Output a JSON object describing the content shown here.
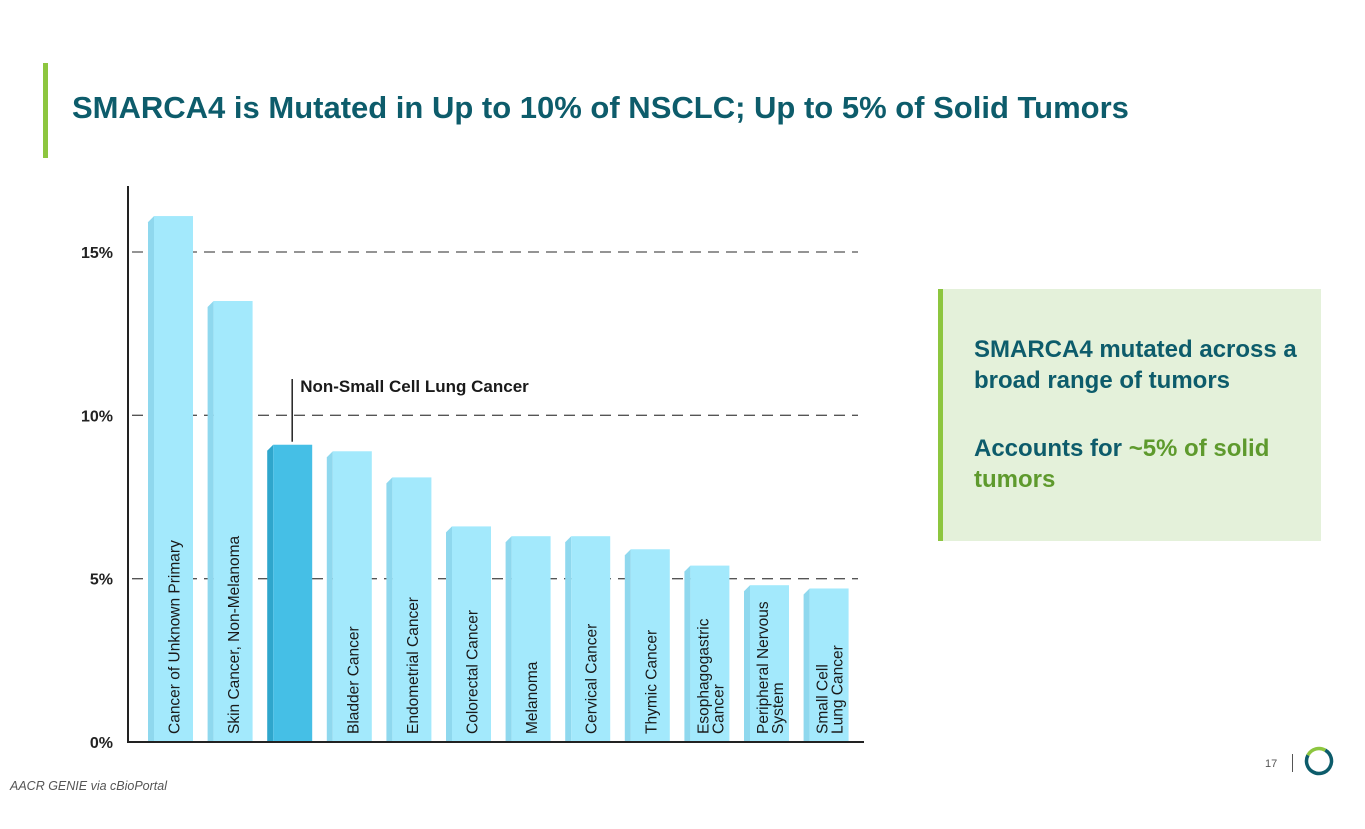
{
  "slide": {
    "title": "SMARCA4 is Mutated in Up to 10% of NSCLC; Up to 5% of Solid Tumors",
    "source": "AACR GENIE via cBioPortal",
    "page_number": "17",
    "logo_icon": "ring-logo-icon"
  },
  "callout": {
    "line1": "SMARCA4 mutated across a broad range of tumors",
    "line2_prefix": "Accounts for ",
    "line2_highlight": "~5% of solid tumors"
  },
  "colors": {
    "title": "#0d5c6b",
    "accent_green": "#8dc63f",
    "highlight_green": "#5e9a2d",
    "callout_bg": "#e4f1da",
    "bar_light": "#a3e9fc",
    "bar_light_side": "#8fd8ee",
    "bar_highlight": "#45bfe6",
    "bar_highlight_side": "#2fa6cc"
  },
  "chart_data": {
    "type": "bar",
    "title": "",
    "xlabel": "",
    "ylabel": "",
    "ylim": [
      0,
      17
    ],
    "yticks": [
      0,
      5,
      10,
      15
    ],
    "ytick_labels": [
      "0%",
      "5%",
      "10%",
      "15%"
    ],
    "grid": "dashed at 5%, 10%, 15%",
    "categories": [
      "Cancer of Unknown Primary",
      "Skin Cancer, Non-Melanoma",
      "Non-Small Cell Lung Cancer",
      "Bladder Cancer",
      "Endometrial Cancer",
      "Colorectal Cancer",
      "Melanoma",
      "Cervical Cancer",
      "Thymic Cancer",
      "Esophagogastric Cancer",
      "Peripheral Nervous System",
      "Small Cell Lung Cancer"
    ],
    "bar_labels": [
      [
        "Cancer of Unknown Primary"
      ],
      [
        "Skin Cancer, Non-Melanoma"
      ],
      [],
      [
        "Bladder Cancer"
      ],
      [
        "Endometrial Cancer"
      ],
      [
        "Colorectal Cancer"
      ],
      [
        "Melanoma"
      ],
      [
        "Cervical Cancer"
      ],
      [
        "Thymic Cancer"
      ],
      [
        "Esophagogastric",
        "Cancer"
      ],
      [
        "Peripheral Nervous",
        "System"
      ],
      [
        "Small Cell",
        "Lung Cancer"
      ]
    ],
    "values": [
      16.1,
      13.5,
      9.1,
      8.9,
      8.1,
      6.6,
      6.3,
      6.3,
      5.9,
      5.4,
      4.8,
      4.7
    ],
    "highlight_index": 2,
    "annotation": "Non-Small Cell Lung Cancer"
  }
}
